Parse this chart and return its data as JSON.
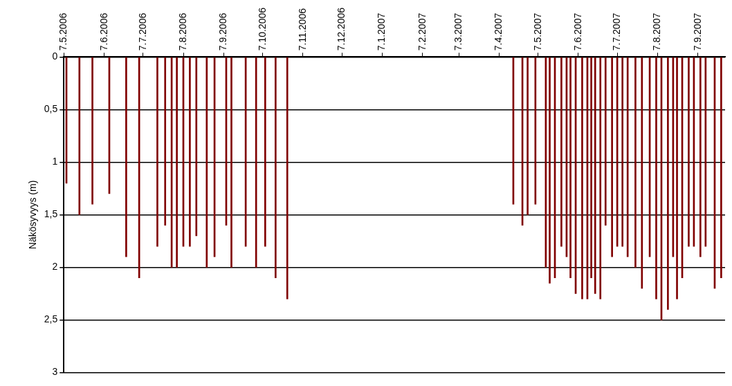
{
  "chart_data": {
    "type": "bar",
    "ylabel": "Näkösyvyys (m)",
    "color": "#800000",
    "x": [
      "2006-05-09",
      "2006-05-19",
      "2006-05-29",
      "2006-06-11",
      "2006-06-24",
      "2006-07-04",
      "2006-07-18",
      "2006-07-24",
      "2006-07-29",
      "2006-08-02",
      "2006-08-07",
      "2006-08-12",
      "2006-08-17",
      "2006-08-25",
      "2006-08-31",
      "2006-09-09",
      "2006-09-13",
      "2006-09-24",
      "2006-10-02",
      "2006-10-09",
      "2006-10-17",
      "2006-10-26",
      "2007-04-18",
      "2007-04-25",
      "2007-04-29",
      "2007-05-05",
      "2007-05-13",
      "2007-05-16",
      "2007-05-20",
      "2007-05-25",
      "2007-05-29",
      "2007-06-01",
      "2007-06-05",
      "2007-06-10",
      "2007-06-14",
      "2007-06-17",
      "2007-06-20",
      "2007-06-24",
      "2007-06-28",
      "2007-07-03",
      "2007-07-07",
      "2007-07-11",
      "2007-07-15",
      "2007-07-21",
      "2007-07-26",
      "2007-08-01",
      "2007-08-06",
      "2007-08-10",
      "2007-08-15",
      "2007-08-19",
      "2007-08-22",
      "2007-08-26",
      "2007-08-31",
      "2007-09-04",
      "2007-09-09",
      "2007-09-13",
      "2007-09-20",
      "2007-09-25"
    ],
    "values": [
      1.2,
      1.5,
      1.4,
      1.3,
      1.9,
      2.1,
      1.8,
      1.6,
      2.0,
      2.0,
      1.8,
      1.8,
      1.7,
      2.0,
      1.9,
      1.6,
      2.0,
      1.8,
      2.0,
      1.8,
      2.1,
      2.3,
      1.4,
      1.6,
      1.5,
      1.4,
      2.0,
      2.15,
      2.1,
      1.8,
      1.9,
      2.1,
      2.25,
      2.3,
      2.3,
      2.1,
      2.25,
      2.3,
      1.6,
      1.9,
      1.8,
      1.8,
      1.9,
      2.0,
      2.2,
      1.9,
      2.3,
      2.5,
      2.4,
      1.9,
      2.3,
      2.1,
      1.8,
      1.8,
      1.9,
      1.8,
      2.2,
      2.1
    ],
    "xlim": [
      "2006-05-07",
      "2007-09-28"
    ],
    "xticks": [
      {
        "value": "2006-05-07",
        "label": "7.5.2006"
      },
      {
        "value": "2006-06-07",
        "label": "7.6.2006"
      },
      {
        "value": "2006-07-07",
        "label": "7.7.2006"
      },
      {
        "value": "2006-08-07",
        "label": "7.8.2006"
      },
      {
        "value": "2006-09-07",
        "label": "7.9.2006"
      },
      {
        "value": "2006-10-07",
        "label": "7.10.2006"
      },
      {
        "value": "2006-11-07",
        "label": "7.11.2006"
      },
      {
        "value": "2006-12-07",
        "label": "7.12.2006"
      },
      {
        "value": "2007-01-07",
        "label": "7.1.2007"
      },
      {
        "value": "2007-02-07",
        "label": "7.2.2007"
      },
      {
        "value": "2007-03-07",
        "label": "7.3.2007"
      },
      {
        "value": "2007-04-07",
        "label": "7.4.2007"
      },
      {
        "value": "2007-05-07",
        "label": "7.5.2007"
      },
      {
        "value": "2007-06-07",
        "label": "7.6.2007"
      },
      {
        "value": "2007-07-07",
        "label": "7.7.2007"
      },
      {
        "value": "2007-08-07",
        "label": "7.8.2007"
      },
      {
        "value": "2007-09-07",
        "label": "7.9.2007"
      }
    ],
    "ylim": [
      3,
      0
    ],
    "yticks": [
      0,
      {
        "value": 0.5,
        "label": "0,5"
      },
      1,
      {
        "value": 1.5,
        "label": "1,5"
      },
      2,
      {
        "value": 2.5,
        "label": "2,5"
      },
      3
    ],
    "grid": "y",
    "legend": false
  }
}
